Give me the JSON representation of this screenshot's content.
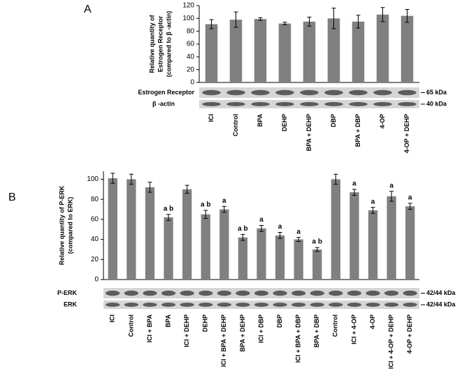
{
  "chart_data": [
    {
      "type": "bar",
      "panel": "A",
      "y_label": [
        "Relative quantity of",
        "Estrogen Receptor",
        "(compared to β -actin)"
      ],
      "categories": [
        "ICI",
        "Control",
        "BPA",
        "DEHP",
        "BPA + DEHP",
        "DBP",
        "BPA + DBP",
        "4-OP",
        "4-OP + DEHP"
      ],
      "series": [
        {
          "color": "#808080",
          "values": [
            91,
            98,
            99,
            92,
            95,
            100,
            95,
            106,
            104
          ],
          "errors": [
            7,
            12,
            2,
            2,
            7,
            16,
            10,
            11,
            10
          ]
        }
      ],
      "ylim": [
        0,
        120
      ],
      "yticks": [
        0,
        20,
        40,
        60,
        80,
        100,
        120
      ],
      "blots": [
        {
          "name": "Estrogen Receptor",
          "size": "65 kDa"
        },
        {
          "name": "β -actin",
          "size": "40 kDa"
        }
      ]
    },
    {
      "type": "bar",
      "panel": "B",
      "y_label": [
        "Relative  quantity of P-ERK",
        "(compared to ERK)"
      ],
      "categories": [
        "ICI",
        "Control",
        "ICI + BPA",
        "BPA",
        "ICI + DEHP",
        "DEHP",
        "ICI + BPA + DEHP",
        "BPA + DEHP",
        "ICI + DBP",
        "DBP",
        "ICI + BPA + DBP",
        "BPA + DBP",
        "Control",
        "ICI + 4-OP",
        "4-OP",
        "ICI + 4-OP + DEHP",
        "4-OP + DEHP"
      ],
      "series": [
        {
          "color": "#808080",
          "values": [
            101,
            100,
            92,
            62,
            90,
            65,
            70,
            42,
            51,
            44,
            40,
            30,
            100,
            87,
            69,
            83,
            73
          ],
          "errors": [
            5,
            5,
            5,
            3,
            4,
            4,
            3,
            3,
            3,
            3,
            2,
            2,
            5,
            3,
            3,
            5,
            3
          ],
          "annotations": [
            null,
            null,
            null,
            "a b",
            null,
            "a b",
            "a",
            "a b",
            "a",
            "a",
            "a",
            "a b",
            null,
            "a",
            "a",
            "a",
            "a"
          ]
        }
      ],
      "ylim": [
        0,
        108
      ],
      "yticks": [
        0,
        20,
        40,
        60,
        80,
        100
      ],
      "blots": [
        {
          "name": "P-ERK",
          "size": "42/44 kDa"
        },
        {
          "name": "ERK",
          "size": "42/44 kDa"
        }
      ]
    }
  ]
}
